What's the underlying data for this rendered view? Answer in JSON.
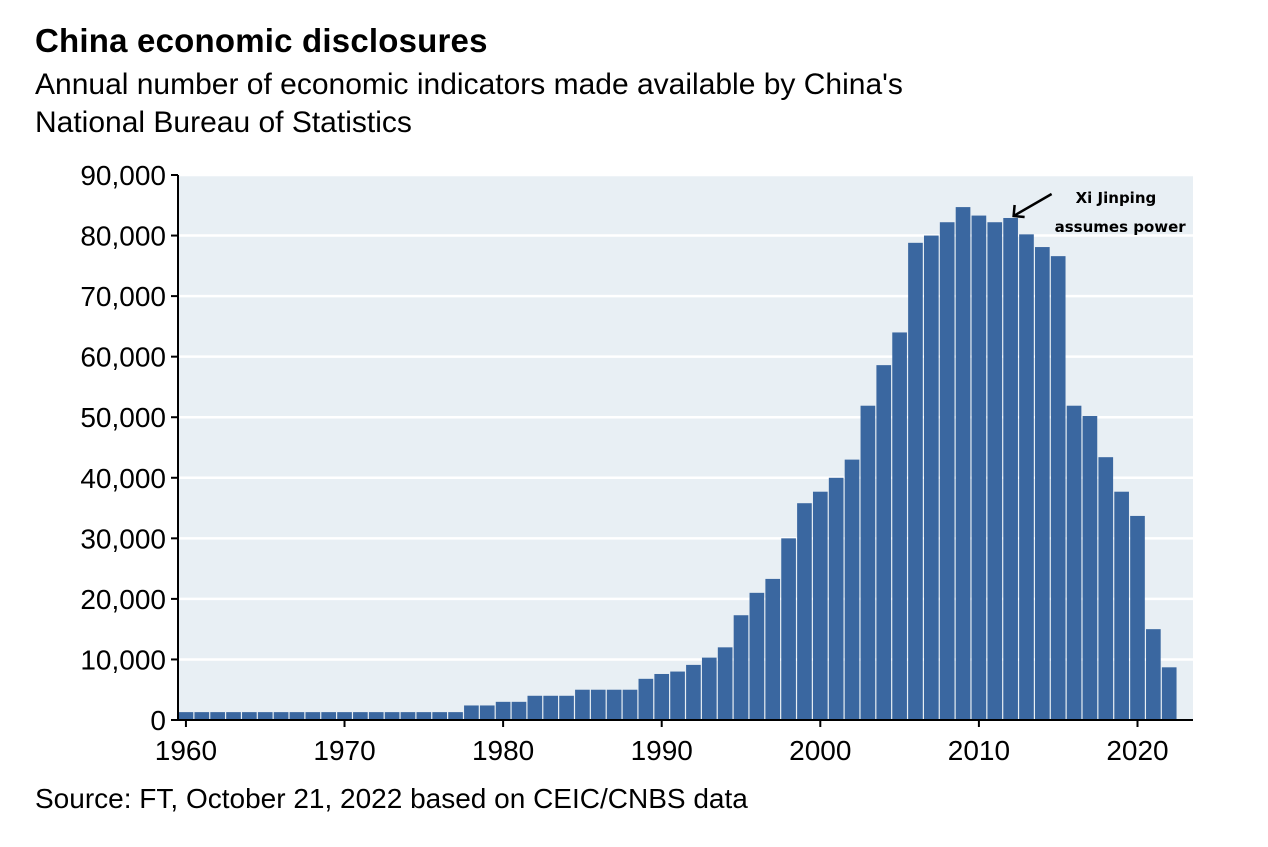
{
  "chart_data": {
    "type": "bar",
    "title": "China economic disclosures",
    "subtitle": "Annual number of economic indicators made available by China's National Bureau of Statistics",
    "subtitle_lines": [
      "Annual number of economic indicators made available by China's",
      "National Bureau of Statistics"
    ],
    "source": "Source: FT, October 21, 2022 based on CEIC/CNBS data",
    "xlabel": "",
    "ylabel": "",
    "ylim": [
      0,
      90000
    ],
    "xlim": [
      1959.5,
      2023.5
    ],
    "grid": true,
    "y_ticks": [
      0,
      10000,
      20000,
      30000,
      40000,
      50000,
      60000,
      70000,
      80000,
      90000
    ],
    "y_tick_labels": [
      "0",
      "10,000",
      "20,000",
      "30,000",
      "40,000",
      "50,000",
      "60,000",
      "70,000",
      "80,000",
      "90,000"
    ],
    "x_ticks": [
      1960,
      1970,
      1980,
      1990,
      2000,
      2010,
      2020
    ],
    "x_tick_labels": [
      "1960",
      "1970",
      "1980",
      "1990",
      "2000",
      "2010",
      "2020"
    ],
    "bar_color": "#3a67a0",
    "plot_bg": "#e8eff4",
    "annotation": {
      "year": 2012,
      "value": 82900,
      "lines": [
        "Xi Jinping",
        "assumes power"
      ]
    },
    "x": [
      1960,
      1961,
      1962,
      1963,
      1964,
      1965,
      1966,
      1967,
      1968,
      1969,
      1970,
      1971,
      1972,
      1973,
      1974,
      1975,
      1976,
      1977,
      1978,
      1979,
      1980,
      1981,
      1982,
      1983,
      1984,
      1985,
      1986,
      1987,
      1988,
      1989,
      1990,
      1991,
      1992,
      1993,
      1994,
      1995,
      1996,
      1997,
      1998,
      1999,
      2000,
      2001,
      2002,
      2003,
      2004,
      2005,
      2006,
      2007,
      2008,
      2009,
      2010,
      2011,
      2012,
      2013,
      2014,
      2015,
      2016,
      2017,
      2018,
      2019,
      2020,
      2021,
      2022
    ],
    "values": [
      1300,
      1300,
      1300,
      1300,
      1300,
      1300,
      1300,
      1300,
      1300,
      1300,
      1300,
      1300,
      1300,
      1300,
      1300,
      1300,
      1300,
      1300,
      2400,
      2400,
      3000,
      3000,
      4000,
      4000,
      4000,
      5000,
      5000,
      5000,
      5000,
      6800,
      7600,
      8000,
      9100,
      10300,
      12000,
      17300,
      21000,
      23300,
      30000,
      35800,
      37700,
      40000,
      43000,
      51900,
      58600,
      64000,
      78800,
      80000,
      82200,
      84700,
      83300,
      82200,
      82900,
      80200,
      78100,
      76600,
      51900,
      50200,
      43400,
      37700,
      33700,
      15000,
      8700
    ]
  }
}
